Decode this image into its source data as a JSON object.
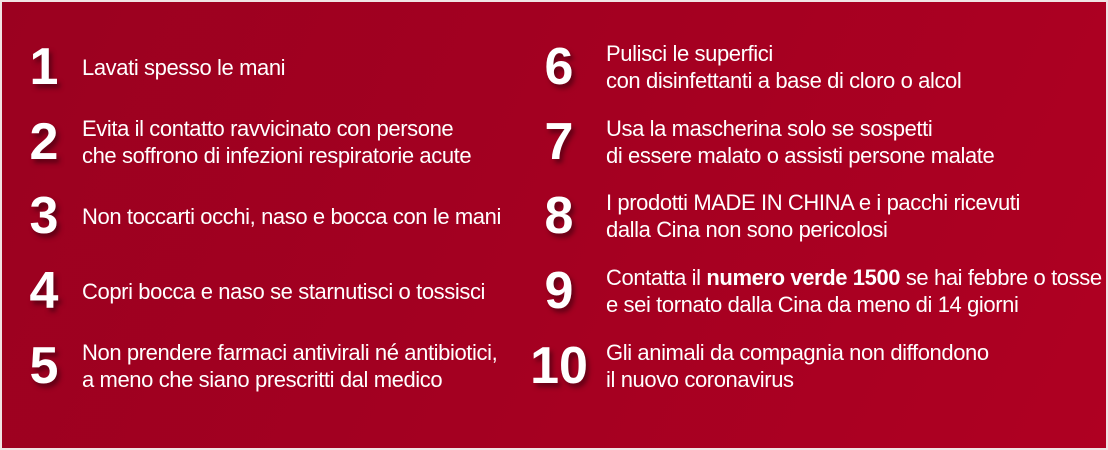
{
  "poster": {
    "title_semantic": "Dieci comportamenti da seguire - nuovo coronavirus",
    "colors": {
      "background_main": "#a40021",
      "background_dark": "#9b0120",
      "background_light": "#af0022",
      "border": "#f0e4e4",
      "text": "#ffffff",
      "number_shadow": "rgba(45,0,12,0.55)"
    }
  },
  "rules": {
    "left": [
      {
        "number": "1",
        "lines": [
          "Lavati spesso le mani"
        ]
      },
      {
        "number": "2",
        "lines": [
          "Evita il contatto ravvicinato con persone",
          "che soffrono di infezioni respiratorie acute"
        ]
      },
      {
        "number": "3",
        "lines": [
          "Non toccarti occhi, naso e bocca con le mani"
        ]
      },
      {
        "number": "4",
        "lines": [
          "Copri bocca e naso se starnutisci o tossisci"
        ]
      },
      {
        "number": "5",
        "lines": [
          "Non prendere farmaci antivirali né antibiotici,",
          "a meno che siano prescritti dal medico"
        ]
      }
    ],
    "right": [
      {
        "number": "6",
        "lines": [
          "Pulisci le superfici",
          "con disinfettanti a base di cloro o alcol"
        ]
      },
      {
        "number": "7",
        "lines": [
          "Usa la mascherina solo se sospetti",
          "di essere malato o assisti persone malate"
        ]
      },
      {
        "number": "8",
        "lines": [
          "I prodotti MADE IN CHINA e i pacchi ricevuti",
          "dalla Cina non sono pericolosi"
        ]
      },
      {
        "number": "9",
        "lines": [
          [
            {
              "t": "Contatta il "
            },
            {
              "t": "numero verde 1500",
              "b": true
            },
            {
              "t": " se hai febbre o tosse"
            }
          ],
          "e sei tornato dalla Cina da meno di 14 giorni"
        ]
      },
      {
        "number": "10",
        "lines": [
          "Gli animali da compagnia non diffondono",
          "il nuovo coronavirus"
        ]
      }
    ]
  }
}
